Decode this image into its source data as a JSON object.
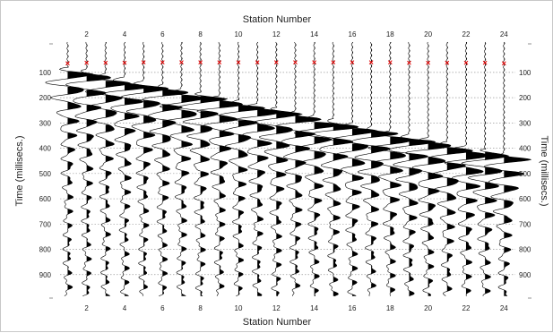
{
  "chart_data": {
    "type": "seismic-wiggle",
    "xlabel": "Station Number",
    "ylabel_left": "Time (millisecs.)",
    "ylabel_right": "Time (millisecs.)",
    "x_ticks": [
      "2",
      "4",
      "6",
      "8",
      "10",
      "12",
      "14",
      "16",
      "18",
      "20",
      "22",
      "24"
    ],
    "y_ticks": [
      "100",
      "200",
      "300",
      "400",
      "500",
      "600",
      "700",
      "800",
      "900"
    ],
    "xlim": [
      0.6,
      24.6
    ],
    "ylim": [
      -20,
      1000
    ],
    "grid": "dotted horizontal",
    "stations": [
      1,
      2,
      3,
      4,
      5,
      6,
      7,
      8,
      9,
      10,
      11,
      12,
      13,
      14,
      15,
      16,
      17,
      18,
      19,
      20,
      21,
      22,
      23,
      24
    ],
    "first_break_picks_ms": [
      64,
      62,
      62,
      62,
      60,
      60,
      60,
      60,
      60,
      60,
      60,
      60,
      60,
      60,
      60,
      60,
      60,
      60,
      62,
      62,
      62,
      62,
      62,
      64
    ],
    "arrival_ms": [
      105,
      115,
      130,
      145,
      160,
      175,
      190,
      205,
      220,
      235,
      250,
      265,
      280,
      295,
      310,
      325,
      340,
      355,
      370,
      385,
      400,
      415,
      430,
      445
    ],
    "pick_color": "#e00000",
    "trace_color": "#000000"
  }
}
